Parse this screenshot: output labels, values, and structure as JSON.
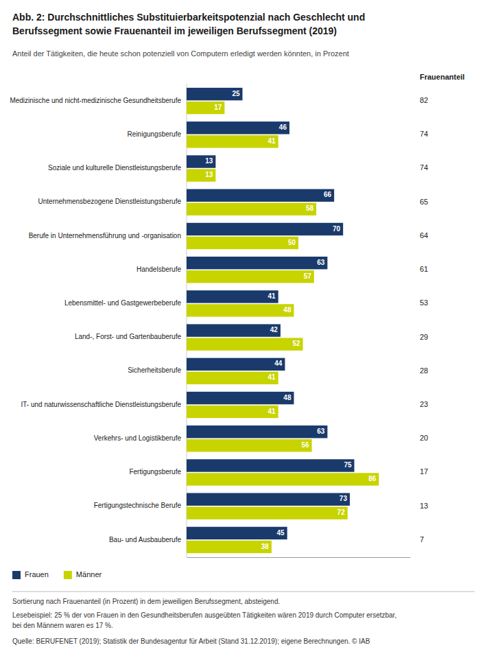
{
  "chart_data": {
    "type": "bar",
    "orientation": "horizontal",
    "title": [
      "Abb. 2: Durchschnittliches Substituierbarkeitspotenzial nach Geschlecht und",
      "Berufssegment sowie Frauenanteil im jeweiligen Berufssegment (2019)"
    ],
    "subtitle": "Anteil der Tätigkeiten, die heute schon potenziell von Computern erledigt werden könnten, in Prozent",
    "categories": [
      "Medizinische und nicht-medizinische Gesundheitsberufe",
      "Reinigungsberufe",
      "Soziale und kulturelle Dienstleistungsberufe",
      "Unternehmensbezogene Dienstleistungsberufe",
      "Berufe in Unternehmensführung und -organisation",
      "Handelsberufe",
      "Lebensmittel- und Gastgewerbeberufe",
      "Land-, Forst- und Gartenbauberufe",
      "Sicherheitsberufe",
      "IT- und naturwissenschaftliche Dienstleistungsberufe",
      "Verkehrs- und Logistikberufe",
      "Fertigungsberufe",
      "Fertigungstechnische Berufe",
      "Bau- und Ausbauberufe"
    ],
    "series": [
      {
        "name": "Frauen",
        "color": "#1a3a6b",
        "values": [
          25,
          46,
          13,
          66,
          70,
          63,
          41,
          42,
          44,
          48,
          63,
          75,
          73,
          45
        ]
      },
      {
        "name": "Männer",
        "color": "#c8d400",
        "values": [
          17,
          41,
          13,
          58,
          50,
          57,
          48,
          52,
          41,
          41,
          56,
          86,
          72,
          38
        ]
      }
    ],
    "frauenanteil": {
      "label": "Frauenanteil",
      "values": [
        82,
        74,
        74,
        65,
        64,
        61,
        53,
        29,
        28,
        23,
        20,
        17,
        13,
        7
      ]
    },
    "xlim": [
      0,
      100
    ],
    "tick_labels": false,
    "grid": false,
    "data_labels": true,
    "legend": "bottom",
    "footnotes": [
      "Sortierung nach Frauenanteil (in Prozent) in dem jeweiligen Berufssegment, absteigend.",
      "Lesebeispiel: 25 % der von Frauen in den Gesundheitsberufen ausgeübten Tätigkeiten wären 2019 durch Computer ersetzbar,",
      "bei den Männern waren es 17 %."
    ],
    "source": "Quelle: BERUFENET (2019); Statistik der Bundesagentur für Arbeit (Stand 31.12.2019); eigene Berechnungen. © IAB"
  }
}
